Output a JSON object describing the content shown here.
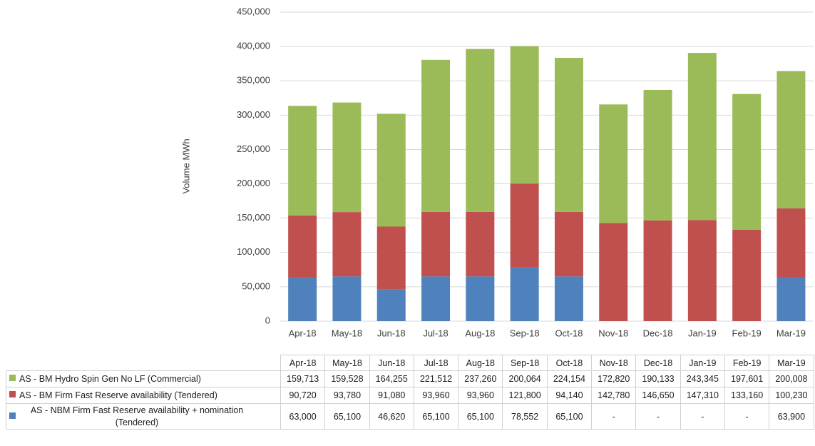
{
  "chart_data": {
    "type": "bar",
    "stacked": true,
    "y_label": "Volume MWh",
    "categories": [
      "Apr-18",
      "May-18",
      "Jun-18",
      "Jul-18",
      "Aug-18",
      "Sep-18",
      "Oct-18",
      "Nov-18",
      "Dec-18",
      "Jan-19",
      "Feb-19",
      "Mar-19"
    ],
    "series": [
      {
        "name": "AS - BM Hydro Spin Gen No LF (Commercial)",
        "color": "#9bbb59",
        "values": [
          159713,
          159528,
          164255,
          221512,
          237260,
          200064,
          224154,
          172820,
          190133,
          243345,
          197601,
          200008
        ],
        "value_labels": [
          "159,713",
          "159,528",
          "164,255",
          "221,512",
          "237,260",
          "200,064",
          "224,154",
          "172,820",
          "190,133",
          "243,345",
          "197,601",
          "200,008"
        ]
      },
      {
        "name": "AS - BM Firm Fast Reserve availability (Tendered)",
        "color": "#c0504d",
        "values": [
          90720,
          93780,
          91080,
          93960,
          93960,
          121800,
          94140,
          142780,
          146650,
          147310,
          133160,
          100230
        ],
        "value_labels": [
          "90,720",
          "93,780",
          "91,080",
          "93,960",
          "93,960",
          "121,800",
          "94,140",
          "142,780",
          "146,650",
          "147,310",
          "133,160",
          "100,230"
        ]
      },
      {
        "name": "AS - NBM Firm Fast Reserve availability + nomination (Tendered)",
        "color": "#4f81bd",
        "values": [
          63000,
          65100,
          46620,
          65100,
          65100,
          78552,
          65100,
          null,
          null,
          null,
          null,
          63900
        ],
        "value_labels": [
          "63,000",
          "65,100",
          "46,620",
          "65,100",
          "65,100",
          "78,552",
          "65,100",
          "-",
          "-",
          "-",
          "-",
          "63,900"
        ]
      }
    ],
    "ylim": [
      0,
      450000
    ],
    "yticks": [
      0,
      {
        "value": 50000,
        "label": "50,000"
      },
      {
        "value": 100000,
        "label": "100,000"
      },
      {
        "value": 150000,
        "label": "150,000"
      },
      {
        "value": 200000,
        "label": "200,000"
      },
      {
        "value": 250000,
        "label": "250,000"
      },
      {
        "value": 300000,
        "label": "300,000"
      },
      {
        "value": 350000,
        "label": "350,000"
      },
      {
        "value": 400000,
        "label": "400,000"
      },
      {
        "value": 450000,
        "label": "450,000"
      }
    ],
    "grid": true
  }
}
